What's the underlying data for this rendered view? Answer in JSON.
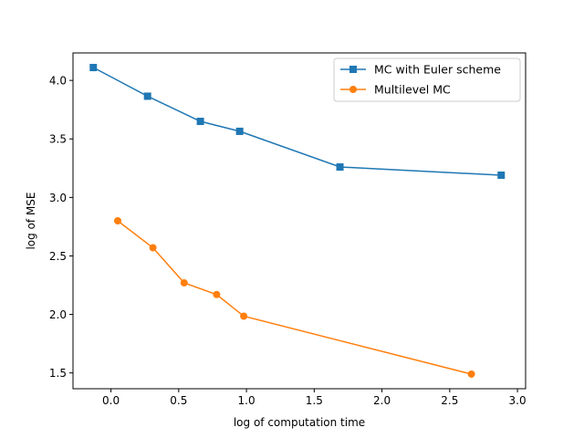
{
  "chart_data": {
    "type": "line",
    "title": "",
    "xlabel": "log of computation time",
    "ylabel": "log of MSE",
    "xlim": [
      -0.28,
      3.06
    ],
    "ylim": [
      1.365,
      4.235
    ],
    "xticks": [
      0.0,
      0.5,
      1.0,
      1.5,
      2.0,
      2.5,
      3.0
    ],
    "xtick_labels": [
      "0.0",
      "0.5",
      "1.0",
      "1.5",
      "2.0",
      "2.5",
      "3.0"
    ],
    "yticks": [
      1.5,
      2.0,
      2.5,
      3.0,
      3.5,
      4.0
    ],
    "ytick_labels": [
      "1.5",
      "2.0",
      "2.5",
      "3.0",
      "3.5",
      "4.0"
    ],
    "grid": false,
    "legend_position": "top-right",
    "series": [
      {
        "name": "MC with Euler scheme",
        "color": "#1f77b4",
        "marker": "square",
        "x": [
          -0.13,
          0.27,
          0.66,
          0.95,
          1.69,
          2.88
        ],
        "y": [
          4.11,
          3.865,
          3.65,
          3.565,
          3.26,
          3.19
        ]
      },
      {
        "name": "Multilevel MC",
        "color": "#ff7f0e",
        "marker": "circle",
        "x": [
          0.05,
          0.31,
          0.54,
          0.78,
          0.98,
          2.66
        ],
        "y": [
          2.8,
          2.57,
          2.27,
          2.17,
          1.985,
          1.49
        ]
      }
    ]
  }
}
